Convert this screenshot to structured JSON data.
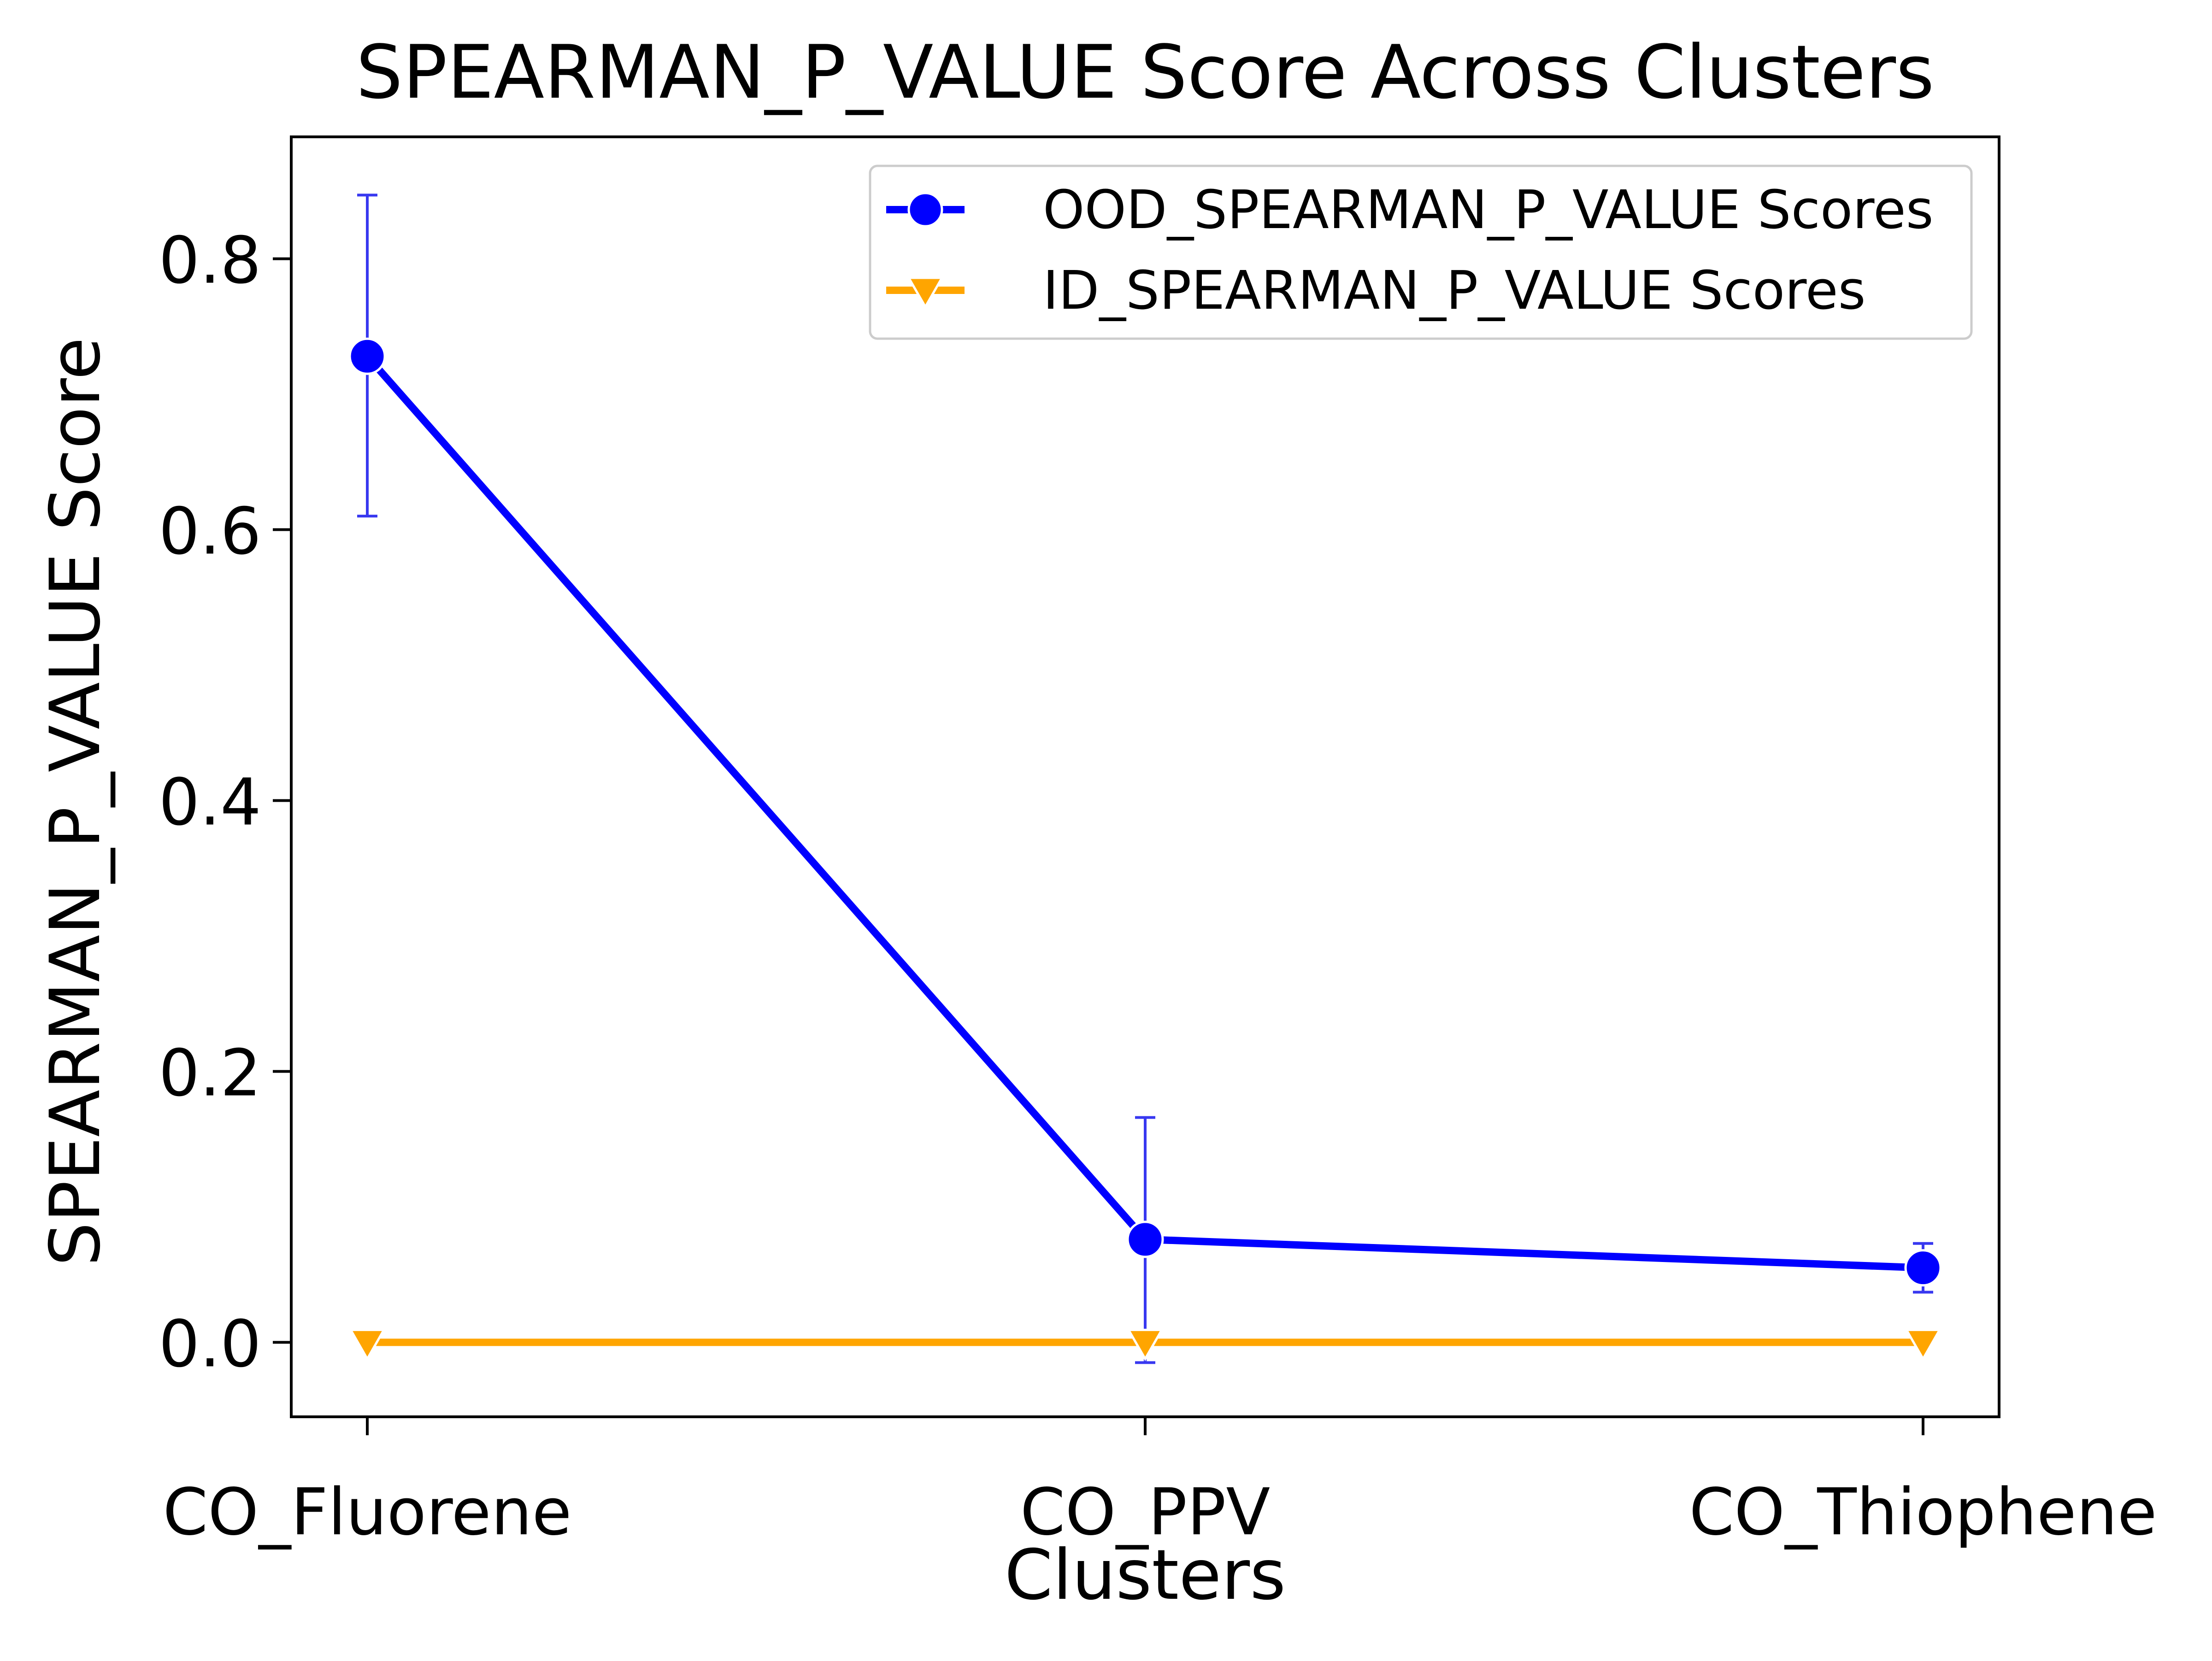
{
  "chart_data": {
    "type": "line",
    "title": "SPEARMAN_P_VALUE Score Across Clusters",
    "xlabel": "Clusters",
    "ylabel": "SPEARMAN_P_VALUE Score",
    "categories": [
      "CO_Fluorene",
      "CO_PPV",
      "CO_Thiophene"
    ],
    "ylim": [
      -0.055,
      0.89
    ],
    "yticks": [
      0.0,
      0.2,
      0.4,
      0.6,
      0.8
    ],
    "ytick_labels": [
      "0.0",
      "0.2",
      "0.4",
      "0.6",
      "0.8"
    ],
    "grid": false,
    "legend_position": "top-right",
    "series": [
      {
        "name": "OOD_SPEARMAN_P_VALUE Scores",
        "color": "#0000ff",
        "marker": "circle",
        "values": [
          0.728,
          0.076,
          0.055
        ],
        "error_low": [
          0.61,
          -0.015,
          0.037
        ],
        "error_high": [
          0.847,
          0.166,
          0.073
        ]
      },
      {
        "name": "ID_SPEARMAN_P_VALUE Scores",
        "color": "#ffa500",
        "marker": "triangle-down",
        "values": [
          0.0,
          0.0,
          0.0
        ]
      }
    ]
  }
}
